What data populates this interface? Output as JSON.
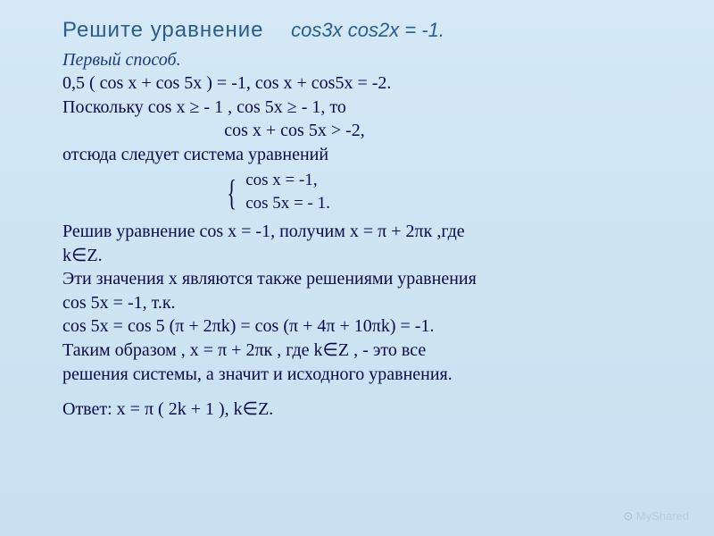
{
  "colors": {
    "bg_top": "#d4e8f5",
    "bg_bottom": "#c8e0f0",
    "heading": "#2b5d8a",
    "subtitle": "#1a3d7a",
    "body": "#0a0a4a",
    "watermark": "#b8cdd9"
  },
  "title": {
    "main": "Решите уравнение",
    "equation": "cos3x  cos2x   =  -1."
  },
  "subtitle": "Первый способ.",
  "line1": "0,5 ( cos x  + cos 5x )  =  -1,      cos x  +  cos5x  = -2.",
  "line2": "Поскольку  cos x ≥  - 1 ,  cos 5x  ≥  - 1,   то",
  "line3": "cos x  +  cos 5x  >  -2,",
  "line4": "отсюда следует система уравнений",
  "system": {
    "eq1": "cos x  =  -1,",
    "eq2": "cos 5x  =  - 1."
  },
  "para2_l1": "Решив уравнение cos x  =  -1, получим  x  =  π +  2πк ,где",
  "para2_l2": "k∈Z.",
  "para2_l3": "Эти значения  x  являются также решениями уравнения",
  "para2_l4": "cos 5x  =  -1,  т.к.",
  "para2_l5": " cos 5x  =  cos 5 (π +  2πk)  =  cos  (π  +  4π  +  10πk)  =  -1.",
  "para2_l6": "Таким образом , x  =  π +  2πк , где k∈Z , -  это все",
  "para2_l7": "решения системы, а значит и исходного уравнения.",
  "answer": "Ответ:  x  =   π ( 2k  +  1  ),  k∈Z.",
  "watermark": "MyShared"
}
